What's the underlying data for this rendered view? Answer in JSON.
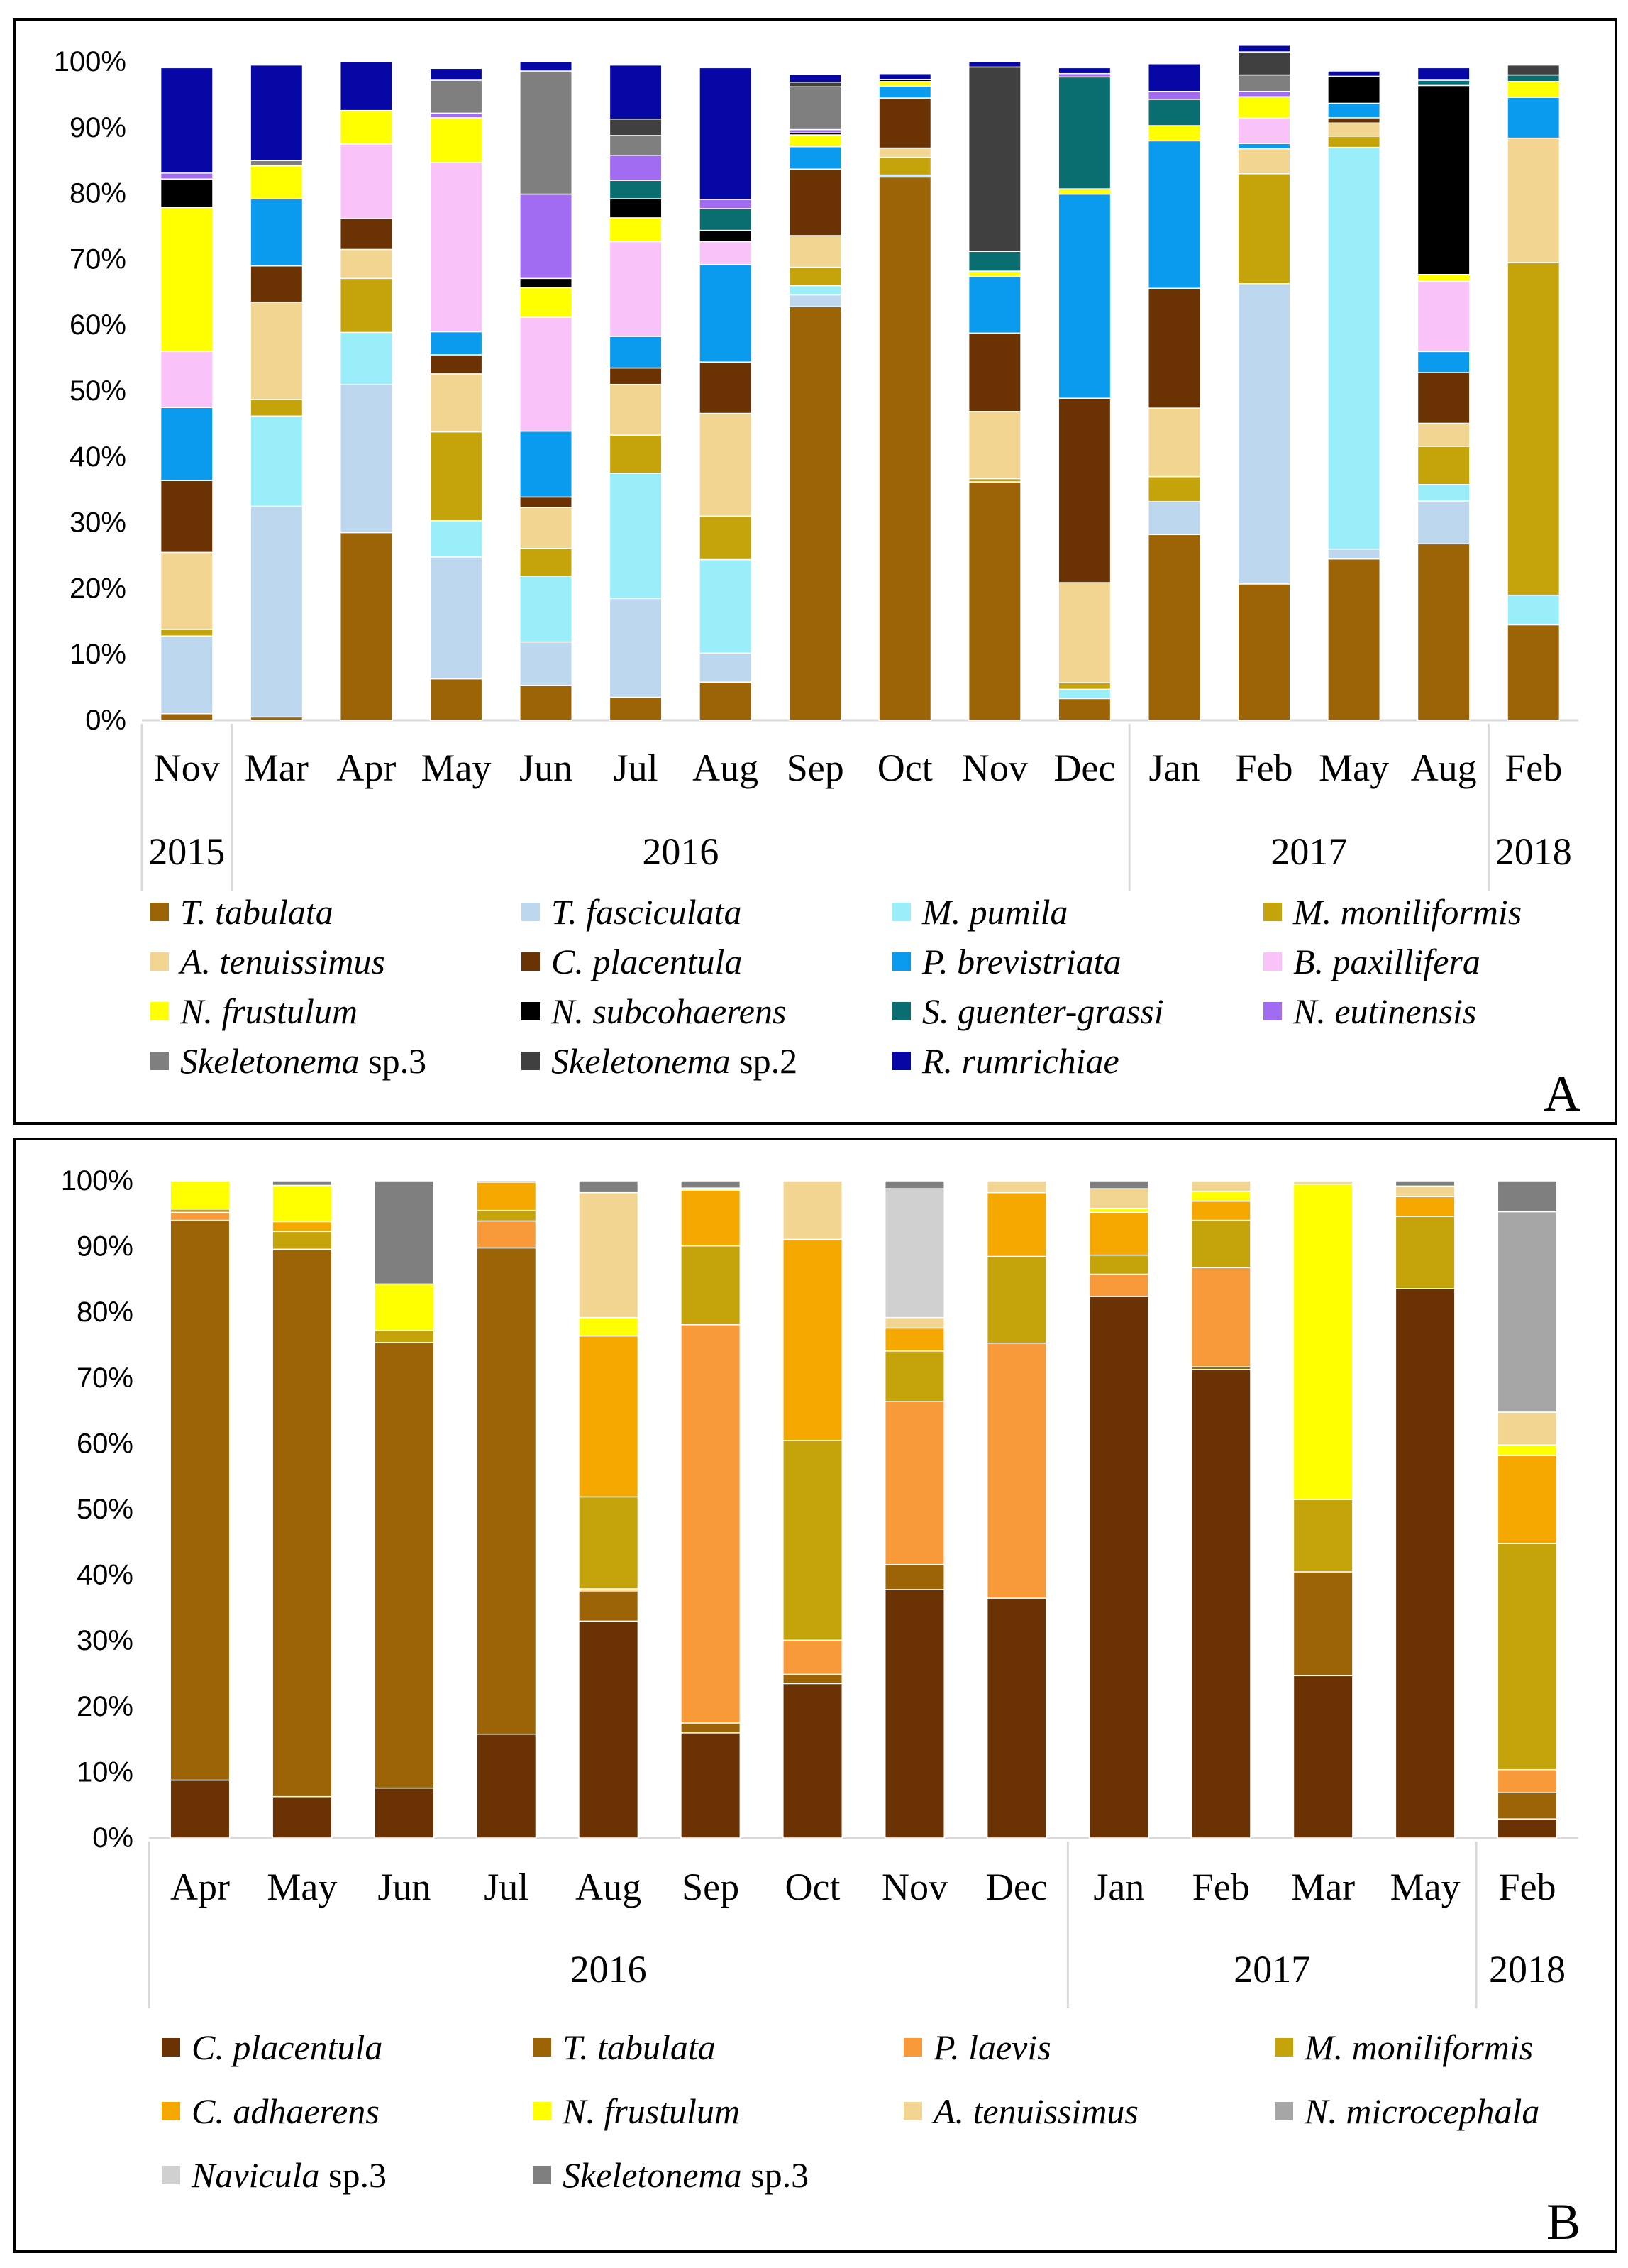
{
  "chart_data": [
    {
      "type": "bar",
      "stacked": true,
      "panel_label": "A",
      "ylim": [
        0,
        100
      ],
      "yticks": [
        "0%",
        "10%",
        "20%",
        "30%",
        "40%",
        "50%",
        "60%",
        "70%",
        "80%",
        "90%",
        "100%"
      ],
      "categories": [
        "Nov",
        "Mar",
        "Apr",
        "May",
        "Jun",
        "Jul",
        "Aug",
        "Sep",
        "Oct",
        "Nov",
        "Dec",
        "Jan",
        "Feb",
        "May",
        "Aug",
        "Feb"
      ],
      "year_groups": [
        {
          "label": "2015",
          "count": 1
        },
        {
          "label": "2016",
          "count": 10
        },
        {
          "label": "2017",
          "count": 4
        },
        {
          "label": "2018",
          "count": 1
        }
      ],
      "series": [
        {
          "name": "T. tabulata",
          "italic": true,
          "color": "#9C6406",
          "values": [
            1,
            0.5,
            28.5,
            6.3,
            5.3,
            3.5,
            5.8,
            62.8,
            82.5,
            36.2,
            3.3,
            28.2,
            20.7,
            24.5,
            26.8,
            14.5
          ]
        },
        {
          "name": "T. fasciculata",
          "italic": true,
          "color": "#BDD7EE",
          "values": [
            11.8,
            32,
            22.5,
            18.5,
            6.6,
            15,
            4.4,
            1.8,
            0,
            0,
            0,
            5,
            45.6,
            1.5,
            6.5,
            0
          ]
        },
        {
          "name": "M. pumila",
          "italic": true,
          "color": "#99EEFA",
          "values": [
            0,
            13.7,
            7.9,
            5.5,
            10,
            19,
            14.2,
            1.4,
            0.3,
            0,
            1.4,
            0,
            0,
            61,
            2.5,
            4.5
          ]
        },
        {
          "name": "M. moniliformis",
          "italic": true,
          "color": "#C5A30A",
          "values": [
            1,
            2.5,
            8.2,
            13.5,
            4.2,
            5.8,
            6.6,
            2.8,
            2.7,
            0.5,
            1,
            3.8,
            16.7,
            1.7,
            5.8,
            50.5
          ]
        },
        {
          "name": "A. tenuissimus",
          "italic": true,
          "color": "#F2D591",
          "values": [
            11.7,
            14.8,
            4.4,
            8.8,
            6.2,
            7.7,
            15.6,
            4.8,
            1.4,
            10.2,
            15.2,
            10.4,
            3.8,
            2,
            3.5,
            18.9
          ]
        },
        {
          "name": "C. placentula",
          "italic": true,
          "color": "#6B3304",
          "values": [
            10.9,
            5.5,
            4.7,
            2.9,
            1.6,
            2.5,
            7.8,
            10.1,
            7.6,
            11.9,
            28,
            18.2,
            0,
            0.8,
            7.7,
            0
          ]
        },
        {
          "name": "P. brevistriata",
          "italic": true,
          "color": "#0B9BEE",
          "values": [
            11.1,
            10.2,
            0,
            3.5,
            10,
            4.8,
            14.8,
            3.4,
            1.8,
            8.6,
            31,
            22.4,
            0.8,
            2.2,
            3.2,
            6.2
          ]
        },
        {
          "name": "B. paxillifera",
          "italic": true,
          "color": "#F9C2F8",
          "values": [
            8.5,
            0,
            11.3,
            25.7,
            17.3,
            14.4,
            3.5,
            0,
            0,
            0,
            0,
            0,
            3.9,
            0,
            10.7,
            0
          ]
        },
        {
          "name": "N. frustulum",
          "italic": true,
          "color": "#FFFF00",
          "values": [
            21.9,
            5,
            5.1,
            6.8,
            4.5,
            3.6,
            0,
            1.8,
            0.7,
            0.8,
            0.8,
            2.3,
            3.2,
            0,
            1,
            2.4
          ]
        },
        {
          "name": "N. subcohaerens",
          "italic": true,
          "color": "#000000",
          "values": [
            4.3,
            0,
            0,
            0,
            1.4,
            2.9,
            1.7,
            0.3,
            0.3,
            0,
            0,
            0,
            0,
            4.1,
            28.7,
            0
          ]
        },
        {
          "name": "S. guenter-grassi",
          "italic": true,
          "color": "#0A6E70",
          "values": [
            0,
            0,
            0,
            0,
            0,
            2.8,
            3.3,
            0,
            0,
            3,
            17,
            4,
            0,
            0,
            0.8,
            1
          ]
        },
        {
          "name": "N. eutinensis",
          "italic": true,
          "color": "#A16BF2",
          "values": [
            0.9,
            0,
            0,
            0.7,
            12.8,
            3.8,
            1.4,
            0.5,
            0,
            0,
            0.5,
            1.2,
            0.8,
            0,
            0,
            0
          ]
        },
        {
          "name": "Skeletonema sp.3",
          "italic": false,
          "color": "#7F7F7F",
          "values": [
            0,
            0.8,
            0,
            5,
            18.7,
            3,
            0,
            6.5,
            0,
            0,
            0,
            0,
            2.5,
            0,
            0,
            0
          ]
        },
        {
          "name": "Skeletonema sp.2",
          "italic": false,
          "color": "#404040",
          "values": [
            0,
            0,
            0,
            0,
            0,
            2.5,
            0,
            0.7,
            0,
            28,
            0,
            0,
            3.5,
            0,
            0,
            1.5
          ]
        },
        {
          "name": "R. rumrichiae",
          "italic": true,
          "color": "#0707A6",
          "values": [
            16,
            14.5,
            7.4,
            1.8,
            1.4,
            8.2,
            20,
            1.2,
            0.9,
            0.8,
            0.9,
            4.2,
            1,
            0.8,
            1.9,
            0
          ]
        }
      ]
    },
    {
      "type": "bar",
      "stacked": true,
      "panel_label": "B",
      "ylim": [
        0,
        100
      ],
      "yticks": [
        "0%",
        "10%",
        "20%",
        "30%",
        "40%",
        "50%",
        "60%",
        "70%",
        "80%",
        "90%",
        "100%"
      ],
      "categories": [
        "Apr",
        "May",
        "Jun",
        "Jul",
        "Aug",
        "Sep",
        "Oct",
        "Nov",
        "Dec",
        "Jan",
        "Feb",
        "Mar",
        "May",
        "Feb"
      ],
      "year_groups": [
        {
          "label": "2016",
          "count": 9
        },
        {
          "label": "2017",
          "count": 4
        },
        {
          "label": "2018",
          "count": 1
        }
      ],
      "series": [
        {
          "name": "C. placentula",
          "italic": true,
          "color": "#6B3304",
          "values": [
            8.8,
            6.3,
            7.6,
            15.8,
            33,
            16,
            23.5,
            37.8,
            36.5,
            82.4,
            71.3,
            24.7,
            83.6,
            2.9
          ]
        },
        {
          "name": "T. tabulata",
          "italic": true,
          "color": "#9C6406",
          "values": [
            85.2,
            83.3,
            67.8,
            74,
            4.6,
            1.5,
            1.4,
            3.8,
            0,
            0,
            0.4,
            15.8,
            0,
            4
          ]
        },
        {
          "name": "P. laevis",
          "italic": true,
          "color": "#F99A3A",
          "values": [
            1.2,
            0,
            0,
            4.1,
            0.3,
            60.6,
            5.2,
            24.8,
            38.8,
            3.4,
            15.1,
            0,
            0,
            3.5
          ]
        },
        {
          "name": "M. moniliformis",
          "italic": true,
          "color": "#C5A30A",
          "values": [
            0.5,
            2.7,
            1.8,
            1.6,
            14,
            12,
            30.4,
            7.7,
            13.2,
            2.9,
            7.2,
            11,
            11,
            34.4
          ]
        },
        {
          "name": "C. adhaerens",
          "italic": true,
          "color": "#F5A800",
          "values": [
            0,
            1.5,
            0,
            4.3,
            24.5,
            8.5,
            30.6,
            3.5,
            9.7,
            6.5,
            2.9,
            0,
            3,
            13.4
          ]
        },
        {
          "name": "N. frustulum",
          "italic": true,
          "color": "#FFFF00",
          "values": [
            4.3,
            5.5,
            7.1,
            0,
            2.8,
            0.3,
            0,
            0,
            0,
            0.6,
            1.5,
            48,
            0,
            1.6
          ]
        },
        {
          "name": "A. tenuissimus",
          "italic": true,
          "color": "#F2D591",
          "values": [
            0,
            0,
            0,
            0,
            19,
            0,
            8.9,
            1.6,
            1.8,
            3,
            1.6,
            0.5,
            1.6,
            5
          ]
        },
        {
          "name": "N. microcephala",
          "italic": true,
          "color": "#A6A6A6",
          "values": [
            0,
            0,
            0,
            0,
            0,
            0,
            0,
            0,
            0,
            0,
            0,
            0,
            0,
            30.5
          ]
        },
        {
          "name": "Navicula sp.3",
          "italic": false,
          "color": "#D0D0D0",
          "values": [
            0,
            0,
            0,
            0,
            0,
            0,
            0,
            19.6,
            0,
            0,
            0,
            0,
            0,
            0
          ]
        },
        {
          "name": "Skeletonema sp.3",
          "italic": false,
          "color": "#7F7F7F",
          "values": [
            0,
            0.7,
            15.7,
            0.2,
            1.8,
            1.1,
            0,
            1.2,
            0,
            1.2,
            0,
            0,
            0.8,
            4.7
          ]
        }
      ]
    }
  ]
}
